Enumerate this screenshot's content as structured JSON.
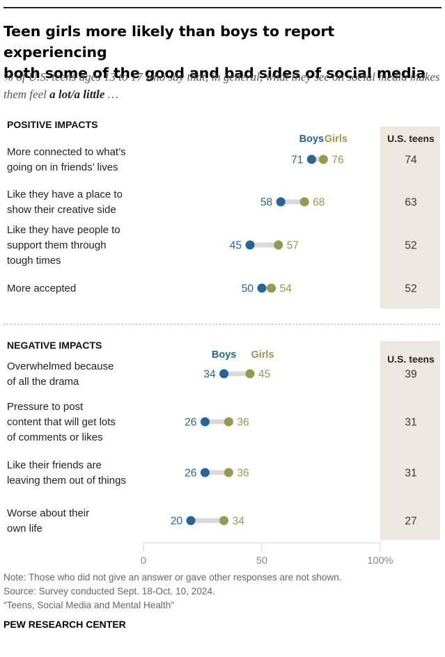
{
  "title_lines": [
    "Teen girls more likely than boys to report experiencing",
    "both some of the good and bad sides of social media"
  ],
  "subtitle": {
    "prefix": "% of U.S. teens ages 13 to 17 who say that, in general, what they see on social media makes them feel ",
    "emphasis": "a lot/a little",
    "suffix": " …"
  },
  "chart_data": {
    "type": "dot",
    "xlim": [
      0,
      100
    ],
    "x_ticks": [
      {
        "value": 0,
        "label": "0"
      },
      {
        "value": 50,
        "label": "50"
      },
      {
        "value": 100,
        "label": "100%"
      }
    ],
    "total_column_label": "U.S. teens",
    "series_legend": {
      "boys": "Boys",
      "girls": "Girls"
    },
    "colors": {
      "boys": "#236697",
      "girls": "#949a4e",
      "connector": "#d9d9d9",
      "column_bg": "#ece8df"
    },
    "groups": [
      {
        "name": "POSITIVE IMPACTS",
        "items": [
          {
            "label": [
              "More connected to what’s",
              "going on in friends’ lives"
            ],
            "boys": 71,
            "girls": 76,
            "total": 74
          },
          {
            "label": [
              "Like they have a place to",
              "show their creative side"
            ],
            "boys": 58,
            "girls": 68,
            "total": 63
          },
          {
            "label": [
              "Like they have people to",
              "support them through",
              "tough times"
            ],
            "boys": 45,
            "girls": 57,
            "total": 52
          },
          {
            "label": [
              "More accepted"
            ],
            "boys": 50,
            "girls": 54,
            "total": 52
          }
        ]
      },
      {
        "name": "NEGATIVE IMPACTS",
        "items": [
          {
            "label": [
              "Overwhelmed because",
              "of all the drama"
            ],
            "boys": 34,
            "girls": 45,
            "total": 39
          },
          {
            "label": [
              "Pressure to post",
              "content that will get lots",
              "of comments or likes"
            ],
            "boys": 26,
            "girls": 36,
            "total": 31
          },
          {
            "label": [
              "Like their friends are",
              "leaving them out of things"
            ],
            "boys": 26,
            "girls": 36,
            "total": 31
          },
          {
            "label": [
              "Worse about their",
              "own life"
            ],
            "boys": 20,
            "girls": 34,
            "total": 27
          }
        ]
      }
    ]
  },
  "footer": {
    "note": "Note: Those who did not give an answer or gave other responses are not shown.",
    "source": "Source: Survey conducted Sept. 18-Oct. 10, 2024.",
    "report": "“Teens, Social Media and Mental Health”",
    "brand": "PEW RESEARCH CENTER"
  }
}
